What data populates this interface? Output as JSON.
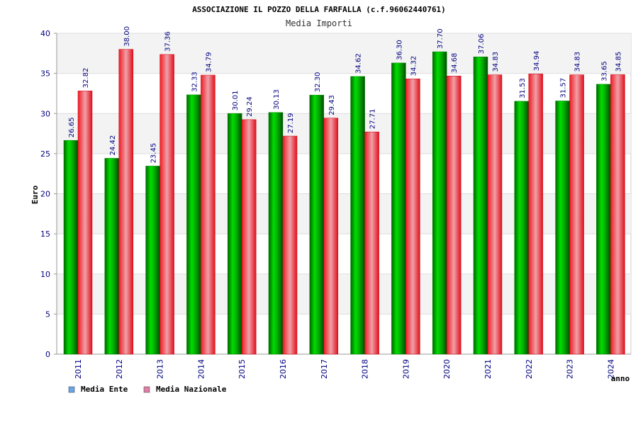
{
  "chart_data": {
    "type": "bar",
    "title": "ASSOCIAZIONE IL POZZO DELLA FARFALLA (c.f.96062440761)",
    "subtitle": "Media Importi",
    "ylabel": "Euro",
    "xlabel": "anno",
    "ylim": [
      0,
      40
    ],
    "yticks": [
      0,
      5,
      10,
      15,
      20,
      25,
      30,
      35,
      40
    ],
    "grid": true,
    "legend_position": "bottom-left",
    "categories": [
      "2011",
      "2012",
      "2013",
      "2014",
      "2015",
      "2016",
      "2017",
      "2018",
      "2019",
      "2020",
      "2021",
      "2022",
      "2023",
      "2024"
    ],
    "series": [
      {
        "name": "Media Ente",
        "values": [
          26.65,
          24.42,
          23.45,
          32.33,
          30.01,
          30.13,
          32.3,
          34.62,
          36.3,
          37.7,
          37.06,
          31.53,
          31.57,
          33.65
        ],
        "labels": [
          "26.65",
          "24.42",
          "23.45",
          "32.33",
          "30.01",
          "30.13",
          "32.30",
          "34.62",
          "36.30",
          "37.70",
          "37.06",
          "31.53",
          "31.57",
          "33.65"
        ],
        "bar_color": "#00c000",
        "legend_color": "#6aa6e8"
      },
      {
        "name": "Media Nazionale",
        "values": [
          32.82,
          38.0,
          37.36,
          34.79,
          29.24,
          27.19,
          29.43,
          27.71,
          34.32,
          34.68,
          34.83,
          34.94,
          34.83,
          34.85
        ],
        "labels": [
          "32.82",
          "38.00",
          "37.36",
          "34.79",
          "29.24",
          "27.19",
          "29.43",
          "27.71",
          "34.32",
          "34.68",
          "34.83",
          "34.94",
          "34.83",
          "34.85"
        ],
        "bar_color": "#e8202a",
        "legend_color": "#e080a8"
      }
    ]
  }
}
